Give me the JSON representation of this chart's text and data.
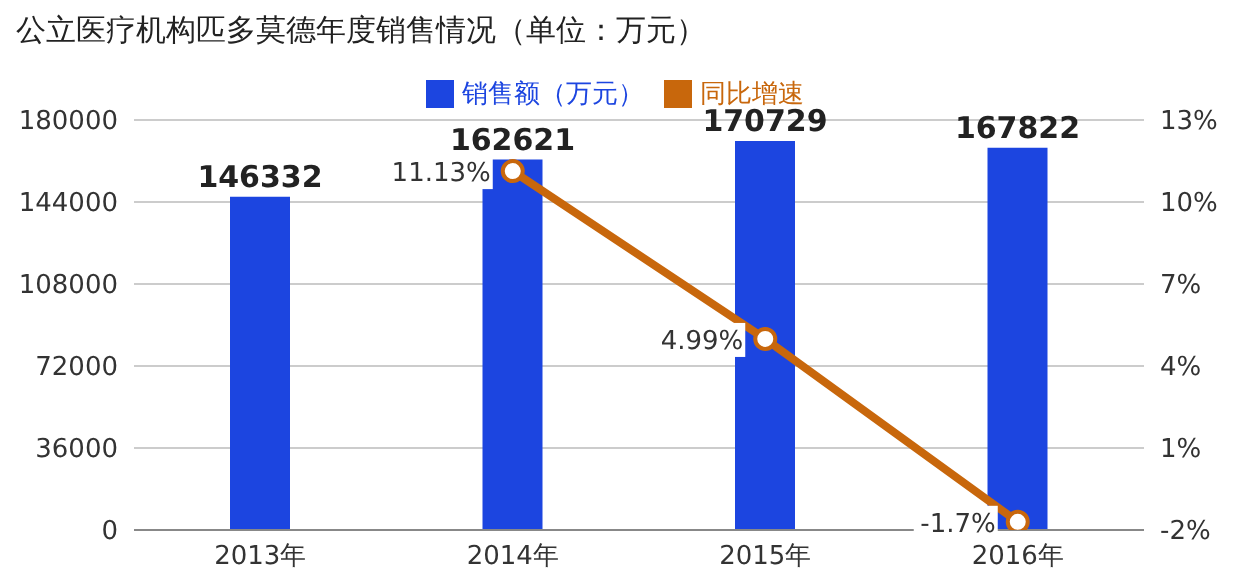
{
  "chart_data": {
    "type": "bar",
    "title": "公立医疗机构匹多莫德年度销售情况（单位：万元）",
    "categories": [
      "2013年",
      "2014年",
      "2015年",
      "2016年"
    ],
    "series": [
      {
        "name": "销售额（万元）",
        "color": "#1c45e0",
        "values": [
          146332,
          162621,
          170729,
          167822
        ],
        "value_labels": [
          "146332",
          "162621",
          "170729",
          "167822"
        ]
      },
      {
        "name": "同比增速",
        "type": "line",
        "axis": "y2",
        "color": "#c8670c",
        "values": [
          null,
          11.13,
          4.99,
          -1.7
        ],
        "value_labels": [
          null,
          "11.13%",
          "4.99%",
          "-1.7%"
        ]
      }
    ],
    "ylim": [
      0,
      180000
    ],
    "yticks": [
      0,
      36000,
      72000,
      108000,
      144000,
      180000
    ],
    "y2lim": [
      -2,
      13
    ],
    "y2ticks": [
      {
        "value": -2,
        "label": "-2%"
      },
      {
        "value": 1,
        "label": "1%"
      },
      {
        "value": 4,
        "label": "4%"
      },
      {
        "value": 7,
        "label": "7%"
      },
      {
        "value": 10,
        "label": "10%"
      },
      {
        "value": 13,
        "label": "13%"
      }
    ],
    "grid": "y",
    "legend": "top",
    "marker": "circle",
    "line_style": "solid"
  }
}
